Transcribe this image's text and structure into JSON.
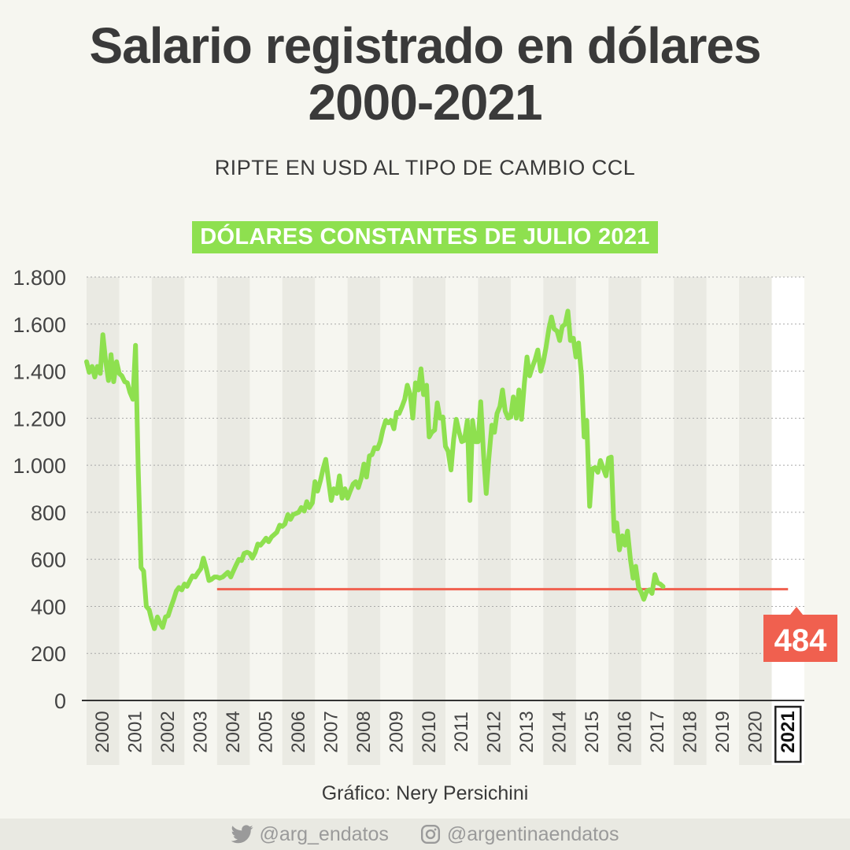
{
  "header": {
    "title_line1": "Salario registrado en dólares",
    "title_line2": "2000-2021",
    "subtitle": "RIPTE EN USD AL TIPO DE CAMBIO CCL",
    "badge": "DÓLARES CONSTANTES DE JULIO 2021"
  },
  "credit": "Gráfico: Nery Persichini",
  "footer": {
    "twitter": "@arg_endatos",
    "instagram": "@argentinaendatos"
  },
  "chart_data": {
    "type": "line",
    "line_color": "#8ee04f",
    "reference_color": "#f0604f",
    "year_labels": [
      "2000",
      "2001",
      "2002",
      "2003",
      "2004",
      "2005",
      "2006",
      "2007",
      "2008",
      "2009",
      "2010",
      "2011",
      "2012",
      "2013",
      "2014",
      "2015",
      "2016",
      "2017",
      "2018",
      "2019",
      "2020",
      "2021"
    ],
    "highlight_year": "2021",
    "ylim": [
      0,
      1800
    ],
    "yticks": [
      0,
      200,
      400,
      600,
      800,
      1000,
      1200,
      1400,
      1600,
      1800
    ],
    "ytick_labels": [
      "0",
      "200",
      "400",
      "600",
      "800",
      "1.000",
      "1.200",
      "1.400",
      "1.600",
      "1.800"
    ],
    "grid": "horizontal dotted",
    "reference": {
      "value": 473,
      "start": 2004.0,
      "end": 2021.5
    },
    "last_value_label": "484",
    "series": [
      {
        "points": [
          [
            2000.0,
            1440
          ],
          [
            2000.08,
            1395
          ],
          [
            2000.17,
            1420
          ],
          [
            2000.25,
            1375
          ],
          [
            2000.33,
            1420
          ],
          [
            2000.42,
            1390
          ],
          [
            2000.5,
            1555
          ],
          [
            2000.58,
            1450
          ],
          [
            2000.67,
            1360
          ],
          [
            2000.75,
            1470
          ],
          [
            2000.83,
            1355
          ],
          [
            2000.92,
            1440
          ],
          [
            2001.0,
            1390
          ],
          [
            2001.08,
            1380
          ],
          [
            2001.17,
            1355
          ],
          [
            2001.25,
            1350
          ],
          [
            2001.33,
            1310
          ],
          [
            2001.42,
            1280
          ],
          [
            2001.5,
            1510
          ],
          [
            2001.58,
            1000
          ],
          [
            2001.67,
            565
          ],
          [
            2001.75,
            550
          ],
          [
            2001.83,
            400
          ],
          [
            2001.92,
            385
          ],
          [
            2002.0,
            340
          ],
          [
            2002.08,
            305
          ],
          [
            2002.17,
            355
          ],
          [
            2002.25,
            330
          ],
          [
            2002.33,
            310
          ],
          [
            2002.42,
            355
          ],
          [
            2002.5,
            360
          ],
          [
            2002.58,
            395
          ],
          [
            2002.67,
            430
          ],
          [
            2002.75,
            465
          ],
          [
            2002.83,
            480
          ],
          [
            2002.92,
            470
          ],
          [
            2003.0,
            495
          ],
          [
            2003.08,
            485
          ],
          [
            2003.17,
            510
          ],
          [
            2003.25,
            530
          ],
          [
            2003.33,
            525
          ],
          [
            2003.42,
            545
          ],
          [
            2003.5,
            560
          ],
          [
            2003.58,
            605
          ],
          [
            2003.67,
            560
          ],
          [
            2003.75,
            510
          ],
          [
            2003.83,
            515
          ],
          [
            2003.92,
            525
          ],
          [
            2004.0,
            525
          ],
          [
            2004.08,
            520
          ],
          [
            2004.17,
            525
          ],
          [
            2004.25,
            535
          ],
          [
            2004.33,
            545
          ],
          [
            2004.42,
            525
          ],
          [
            2004.5,
            550
          ],
          [
            2004.58,
            575
          ],
          [
            2004.67,
            600
          ],
          [
            2004.75,
            595
          ],
          [
            2004.83,
            625
          ],
          [
            2004.92,
            630
          ],
          [
            2005.0,
            625
          ],
          [
            2005.08,
            605
          ],
          [
            2005.17,
            630
          ],
          [
            2005.25,
            665
          ],
          [
            2005.33,
            660
          ],
          [
            2005.42,
            675
          ],
          [
            2005.5,
            690
          ],
          [
            2005.58,
            675
          ],
          [
            2005.67,
            695
          ],
          [
            2005.75,
            705
          ],
          [
            2005.83,
            715
          ],
          [
            2005.92,
            745
          ],
          [
            2006.0,
            740
          ],
          [
            2006.08,
            750
          ],
          [
            2006.17,
            790
          ],
          [
            2006.25,
            770
          ],
          [
            2006.33,
            790
          ],
          [
            2006.42,
            795
          ],
          [
            2006.5,
            800
          ],
          [
            2006.58,
            820
          ],
          [
            2006.67,
            805
          ],
          [
            2006.75,
            845
          ],
          [
            2006.83,
            820
          ],
          [
            2006.92,
            840
          ],
          [
            2007.0,
            930
          ],
          [
            2007.08,
            890
          ],
          [
            2007.17,
            935
          ],
          [
            2007.25,
            985
          ],
          [
            2007.33,
            1025
          ],
          [
            2007.42,
            930
          ],
          [
            2007.5,
            850
          ],
          [
            2007.58,
            900
          ],
          [
            2007.67,
            880
          ],
          [
            2007.75,
            955
          ],
          [
            2007.83,
            860
          ],
          [
            2007.92,
            900
          ],
          [
            2008.0,
            860
          ],
          [
            2008.08,
            890
          ],
          [
            2008.17,
            920
          ],
          [
            2008.25,
            930
          ],
          [
            2008.33,
            905
          ],
          [
            2008.42,
            945
          ],
          [
            2008.5,
            1005
          ],
          [
            2008.58,
            950
          ],
          [
            2008.67,
            1040
          ],
          [
            2008.75,
            1045
          ],
          [
            2008.83,
            1075
          ],
          [
            2008.92,
            1070
          ],
          [
            2009.0,
            1100
          ],
          [
            2009.08,
            1150
          ],
          [
            2009.17,
            1190
          ],
          [
            2009.25,
            1180
          ],
          [
            2009.33,
            1190
          ],
          [
            2009.42,
            1155
          ],
          [
            2009.5,
            1225
          ],
          [
            2009.58,
            1220
          ],
          [
            2009.67,
            1250
          ],
          [
            2009.75,
            1280
          ],
          [
            2009.83,
            1340
          ],
          [
            2009.92,
            1300
          ],
          [
            2010.0,
            1200
          ],
          [
            2010.08,
            1350
          ],
          [
            2010.17,
            1320
          ],
          [
            2010.25,
            1410
          ],
          [
            2010.33,
            1300
          ],
          [
            2010.42,
            1340
          ],
          [
            2010.5,
            1120
          ],
          [
            2010.58,
            1140
          ],
          [
            2010.67,
            1150
          ],
          [
            2010.75,
            1265
          ],
          [
            2010.83,
            1200
          ],
          [
            2010.92,
            1205
          ],
          [
            2011.0,
            1080
          ],
          [
            2011.08,
            1060
          ],
          [
            2011.17,
            980
          ],
          [
            2011.25,
            1110
          ],
          [
            2011.33,
            1195
          ],
          [
            2011.42,
            1140
          ],
          [
            2011.5,
            1100
          ],
          [
            2011.58,
            1105
          ],
          [
            2011.67,
            1190
          ],
          [
            2011.75,
            850
          ],
          [
            2011.83,
            1190
          ],
          [
            2011.92,
            1100
          ],
          [
            2012.0,
            1100
          ],
          [
            2012.08,
            1270
          ],
          [
            2012.17,
            1040
          ],
          [
            2012.25,
            880
          ],
          [
            2012.33,
            1030
          ],
          [
            2012.42,
            1170
          ],
          [
            2012.5,
            1140
          ],
          [
            2012.58,
            1220
          ],
          [
            2012.67,
            1250
          ],
          [
            2012.75,
            1320
          ],
          [
            2012.83,
            1230
          ],
          [
            2012.92,
            1200
          ],
          [
            2013.0,
            1205
          ],
          [
            2013.08,
            1290
          ],
          [
            2013.17,
            1200
          ],
          [
            2013.25,
            1320
          ],
          [
            2013.33,
            1195
          ],
          [
            2013.42,
            1350
          ],
          [
            2013.5,
            1460
          ],
          [
            2013.58,
            1380
          ],
          [
            2013.67,
            1420
          ],
          [
            2013.75,
            1450
          ],
          [
            2013.83,
            1490
          ],
          [
            2013.92,
            1400
          ],
          [
            2014.0,
            1440
          ],
          [
            2014.08,
            1500
          ],
          [
            2014.17,
            1580
          ],
          [
            2014.25,
            1630
          ],
          [
            2014.33,
            1580
          ],
          [
            2014.42,
            1570
          ],
          [
            2014.5,
            1530
          ],
          [
            2014.58,
            1590
          ],
          [
            2014.67,
            1600
          ],
          [
            2014.75,
            1655
          ],
          [
            2014.83,
            1530
          ],
          [
            2014.92,
            1540
          ],
          [
            2015.0,
            1460
          ],
          [
            2015.08,
            1520
          ],
          [
            2015.17,
            1380
          ],
          [
            2015.25,
            1120
          ],
          [
            2015.33,
            1190
          ],
          [
            2015.42,
            825
          ],
          [
            2015.5,
            985
          ],
          [
            2015.58,
            990
          ],
          [
            2015.67,
            970
          ],
          [
            2015.75,
            1020
          ],
          [
            2015.83,
            990
          ],
          [
            2015.92,
            955
          ],
          [
            2016.0,
            1030
          ],
          [
            2016.08,
            1035
          ],
          [
            2016.17,
            720
          ],
          [
            2016.25,
            755
          ],
          [
            2016.33,
            640
          ],
          [
            2016.42,
            700
          ],
          [
            2016.5,
            660
          ],
          [
            2016.58,
            720
          ],
          [
            2016.67,
            600
          ],
          [
            2016.75,
            520
          ],
          [
            2016.83,
            570
          ],
          [
            2016.92,
            480
          ],
          [
            2017.0,
            460
          ],
          [
            2017.08,
            430
          ],
          [
            2017.17,
            465
          ],
          [
            2017.25,
            470
          ],
          [
            2017.33,
            455
          ],
          [
            2017.42,
            535
          ],
          [
            2017.5,
            500
          ],
          [
            2017.58,
            495
          ],
          [
            2017.67,
            484
          ]
        ]
      }
    ]
  }
}
